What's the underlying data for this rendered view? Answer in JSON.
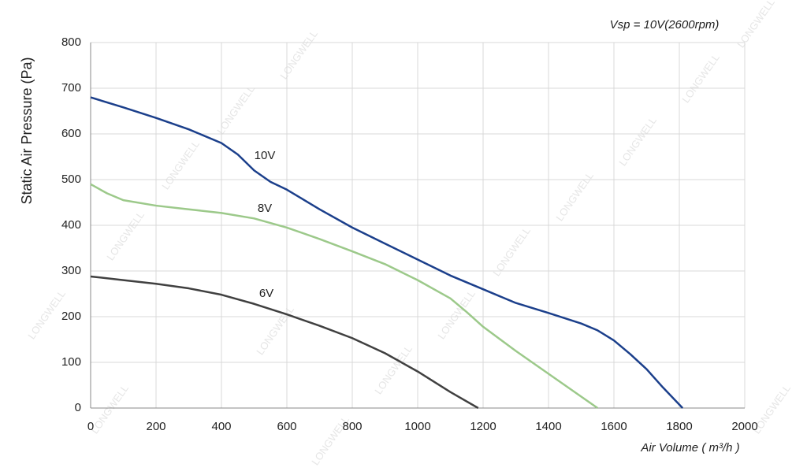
{
  "chart_data": {
    "type": "line",
    "annotation": "Vsp = 10V(2600rpm)",
    "x_label": "Air Volume ( m³/h )",
    "y_label": "Static Air Pressure  (Pa)",
    "watermark": "LONGWELL",
    "xlim": [
      0,
      2000
    ],
    "xticks": [
      0,
      200,
      400,
      600,
      800,
      1000,
      1200,
      1400,
      1600,
      1800,
      2000
    ],
    "ylim": [
      0,
      800
    ],
    "yticks": [
      0,
      100,
      200,
      300,
      400,
      500,
      600,
      700,
      800
    ],
    "grid": true,
    "series": [
      {
        "name": "10V",
        "color": "#1b3f8b",
        "x": [
          0,
          100,
          200,
          300,
          400,
          450,
          500,
          550,
          600,
          700,
          800,
          900,
          1000,
          1100,
          1200,
          1300,
          1400,
          1500,
          1550,
          1600,
          1650,
          1700,
          1750,
          1810
        ],
        "values": [
          680,
          658,
          635,
          610,
          580,
          555,
          520,
          495,
          478,
          435,
          395,
          360,
          325,
          290,
          260,
          230,
          208,
          185,
          170,
          148,
          118,
          85,
          45,
          0
        ]
      },
      {
        "name": "8V",
        "color": "#9cc98a",
        "x": [
          0,
          50,
          100,
          200,
          300,
          400,
          500,
          600,
          700,
          800,
          900,
          1000,
          1100,
          1150,
          1200,
          1300,
          1400,
          1500,
          1550
        ],
        "values": [
          490,
          470,
          455,
          443,
          435,
          427,
          415,
          395,
          370,
          343,
          315,
          280,
          240,
          210,
          178,
          125,
          75,
          25,
          0
        ]
      },
      {
        "name": "6V",
        "color": "#404040",
        "x": [
          0,
          100,
          200,
          300,
          400,
          500,
          600,
          700,
          800,
          900,
          1000,
          1100,
          1185
        ],
        "values": [
          288,
          280,
          272,
          262,
          248,
          228,
          205,
          180,
          153,
          120,
          80,
          35,
          0
        ]
      }
    ]
  }
}
